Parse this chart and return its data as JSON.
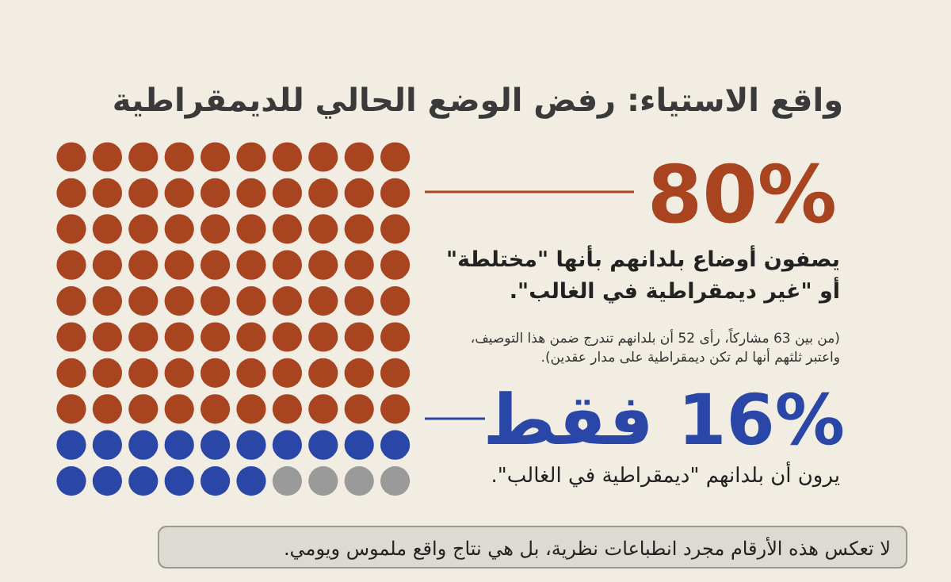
{
  "chart_data": {
    "type": "other",
    "title": "واقع الاستياء: رفض الوضع الحالي للديمقراطية",
    "categories": [
      null,
      null
    ],
    "values": [
      80,
      16
    ],
    "colors": [
      "#a8441f",
      "#2a47a8"
    ],
    "value_labels": [
      "80%",
      "16% فقط"
    ],
    "annotations": [
      "يصفون أوضاع بلدانهم بأنها \"مختلطة\"\nأو \"غير ديمقراطية في الغالب\".",
      "(من بين 63 مشاركاً، رأى 52 أن بلدانهم تندرج ضمن هذا التوصيف،\nواعتبر ثلثهم أنها لم تكن ديمقراطية على مدار عقدين).",
      "يرون أن بلدانهم \"ديمقراطية في الغالب\".",
      "لا تعكس هذه الأرقام مجرد انطباعات نظرية، بل هي نتاج واقع ملموس ويومي."
    ]
  }
}
